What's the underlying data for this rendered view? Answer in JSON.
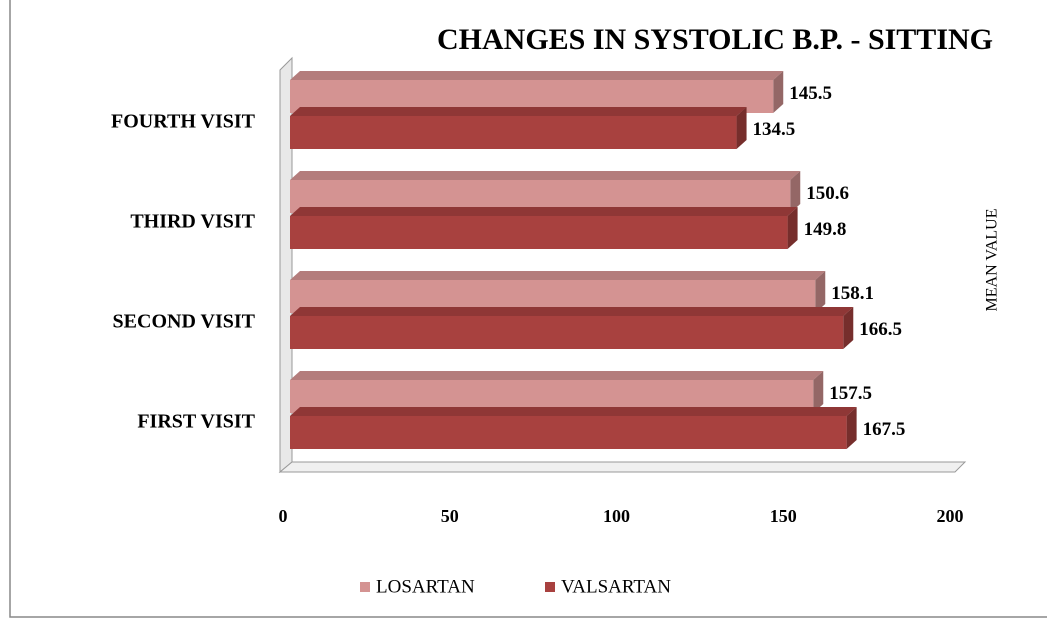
{
  "chart_data": {
    "type": "bar",
    "orientation": "horizontal",
    "title": "CHANGES IN SYSTOLIC B.P. - SITTING",
    "axis_label": "MEAN VALUE",
    "categories": [
      "FIRST VISIT",
      "SECOND VISIT",
      "THIRD VISIT",
      "FOURTH VISIT"
    ],
    "series": [
      {
        "name": "LOSARTAN",
        "color": "#d49392",
        "values": [
          157.5,
          158.1,
          150.6,
          145.5
        ]
      },
      {
        "name": "VALSARTAN",
        "color": "#a8413f",
        "values": [
          167.5,
          166.5,
          149.8,
          134.5
        ]
      }
    ],
    "xlim": [
      0,
      200
    ],
    "xticks": [
      0,
      50,
      100,
      150,
      200
    ],
    "legend": "bottom"
  }
}
